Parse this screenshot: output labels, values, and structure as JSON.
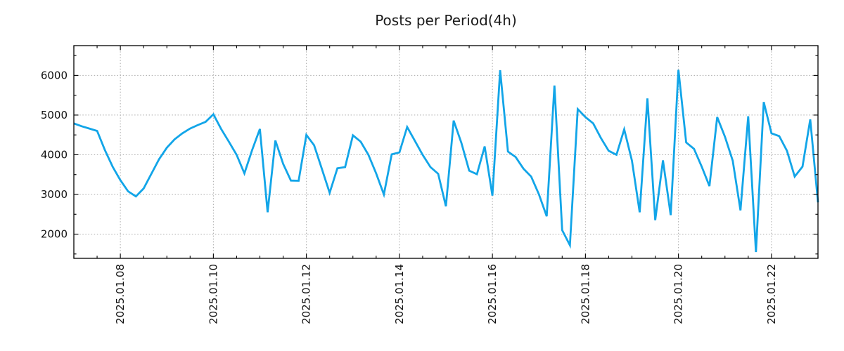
{
  "figure": {
    "title": "Posts per Period(4h)",
    "background_color": "#ffffff"
  },
  "chart_data": {
    "type": "line",
    "title": "Posts per Period(4h)",
    "xlabel": "",
    "ylabel": "",
    "legend": "none",
    "grid": true,
    "series_name": "posts-per-4h-period",
    "x_start": "2025.01.07 00:00",
    "x_step_hours": 4,
    "values": [
      4790,
      4720,
      4660,
      4600,
      4120,
      3700,
      3360,
      3080,
      2950,
      3150,
      3520,
      3890,
      4180,
      4390,
      4540,
      4660,
      4750,
      4830,
      5020,
      4650,
      4330,
      4000,
      3530,
      4120,
      4650,
      2550,
      4360,
      3770,
      3350,
      3345,
      4500,
      4240,
      3640,
      3040,
      3660,
      3690,
      4490,
      4330,
      4000,
      3530,
      3000,
      4010,
      4060,
      4700,
      4350,
      4000,
      3690,
      3520,
      2700,
      4860,
      4300,
      3600,
      3510,
      4210,
      2970,
      6130,
      4080,
      3940,
      3650,
      3450,
      3000,
      2450,
      5745,
      2100,
      1720,
      5150,
      4950,
      4790,
      4420,
      4100,
      4000,
      4640,
      3850,
      2550,
      5420,
      2350,
      3860,
      2480,
      6140,
      4310,
      4150,
      3700,
      3210,
      4950,
      4450,
      3850,
      2600,
      4970,
      1550,
      5330,
      4540,
      4470,
      4100,
      3450,
      3700,
      4890,
      2800
    ],
    "x_tick_labels": [
      "2025.01.08",
      "2025.01.10",
      "2025.01.12",
      "2025.01.14",
      "2025.01.16",
      "2025.01.18",
      "2025.01.20",
      "2025.01.22"
    ],
    "x_tick_indices": [
      6,
      18,
      30,
      42,
      54,
      66,
      78,
      90
    ],
    "x_minor_tick_step_indices": 3,
    "y_ticks": [
      2000,
      3000,
      4000,
      5000,
      6000
    ],
    "y_minor_ticks": [
      1500,
      2500,
      3500,
      4500,
      5500,
      6500
    ],
    "ylim": [
      1390,
      6750
    ],
    "style": {
      "line_color": "#12a5e8",
      "line_width": 2.8,
      "grid_color": "#a9a9a9",
      "grid_dash": "1.5 2.6",
      "spine_color": "#000000",
      "tick_color": "#000000",
      "text_color": "#111111"
    }
  }
}
